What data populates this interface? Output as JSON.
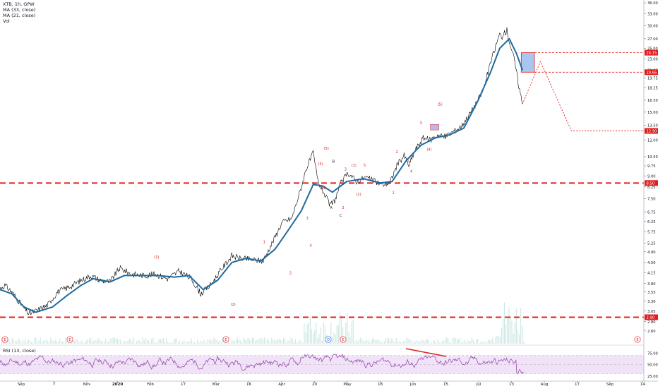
{
  "header": {
    "symbol_line": "XTB, 1h, GPW",
    "ma_short": "MA (33, close)",
    "ma_long": "MA (21, close)",
    "volume": "Vol"
  },
  "rsi_header": "RSI (13, close)",
  "colors": {
    "price_up": "#26a69a",
    "price_down": "#000000",
    "ma_line": "#1e6b9f",
    "level_line": "#e31d1d",
    "wave_label": "#d11a1a",
    "rsi_line": "#8e3ea8",
    "rsi_band": "#f1e3f7",
    "target_box": "#a9c6f1",
    "volume": "#cfe8e4"
  },
  "chart_data": [
    {
      "type": "line",
      "name_note": "Price chart with wave annotations",
      "x_tick_labels": [
        "Sep",
        "7",
        "Nov",
        "2020",
        "Feb",
        "17",
        "Mar",
        "16",
        "Apr",
        "20",
        "May",
        "18",
        "Jun",
        "15",
        "Jul",
        "13",
        "Aug",
        "17",
        "Sep",
        "14"
      ],
      "y_axis": {
        "scale": "log",
        "ylim": [
          2.4,
          36.0
        ],
        "tick_labels": [
          "36.00",
          "33.00",
          "30.00",
          "27.00",
          "25.00",
          "23.00",
          "21.00",
          "19.75",
          "18.25",
          "16.50",
          "15.00",
          "13.50",
          "12.00",
          "10.50",
          "9.75",
          "9.00",
          "8.25",
          "7.50",
          "6.75",
          "6.25",
          "5.75",
          "5.25",
          "4.90",
          "4.50",
          "4.15",
          "3.80",
          "3.55",
          "3.30",
          "3.05",
          "2.80",
          "2.60"
        ]
      },
      "price_labels": [
        "24.15",
        "20.65",
        "12.90",
        "8.50",
        "2.90"
      ],
      "price_levels": [
        24.15,
        20.65,
        12.9,
        8.5,
        2.9
      ],
      "horizontal_levels": [
        8.5,
        2.9
      ],
      "price_series": [
        {
          "x": 0,
          "y": 3.65
        },
        {
          "x": 4,
          "y": 3.75
        },
        {
          "x": 10,
          "y": 3.55
        },
        {
          "x": 18,
          "y": 3.2
        },
        {
          "x": 24,
          "y": 2.98
        },
        {
          "x": 30,
          "y": 3.05
        },
        {
          "x": 40,
          "y": 3.2
        },
        {
          "x": 48,
          "y": 3.55
        },
        {
          "x": 58,
          "y": 3.7
        },
        {
          "x": 68,
          "y": 3.9
        },
        {
          "x": 76,
          "y": 4.05
        },
        {
          "x": 84,
          "y": 3.9
        },
        {
          "x": 92,
          "y": 3.85
        },
        {
          "x": 100,
          "y": 4.3
        },
        {
          "x": 110,
          "y": 4.1
        },
        {
          "x": 120,
          "y": 4.05
        },
        {
          "x": 130,
          "y": 4.1
        },
        {
          "x": 140,
          "y": 3.95
        },
        {
          "x": 150,
          "y": 4.2
        },
        {
          "x": 160,
          "y": 3.95
        },
        {
          "x": 168,
          "y": 3.5
        },
        {
          "x": 176,
          "y": 3.75
        },
        {
          "x": 186,
          "y": 4.3
        },
        {
          "x": 194,
          "y": 4.75
        },
        {
          "x": 200,
          "y": 4.65
        },
        {
          "x": 212,
          "y": 4.6
        },
        {
          "x": 220,
          "y": 4.55
        },
        {
          "x": 228,
          "y": 5.3
        },
        {
          "x": 236,
          "y": 6.2
        },
        {
          "x": 244,
          "y": 6.4
        },
        {
          "x": 252,
          "y": 8.2
        },
        {
          "x": 256,
          "y": 9.5
        },
        {
          "x": 262,
          "y": 10.8
        },
        {
          "x": 266,
          "y": 8.6
        },
        {
          "x": 270,
          "y": 8.0
        },
        {
          "x": 276,
          "y": 7.1
        },
        {
          "x": 280,
          "y": 7.4
        },
        {
          "x": 286,
          "y": 8.7
        },
        {
          "x": 292,
          "y": 9.2
        },
        {
          "x": 298,
          "y": 8.6
        },
        {
          "x": 306,
          "y": 8.9
        },
        {
          "x": 314,
          "y": 8.6
        },
        {
          "x": 320,
          "y": 8.4
        },
        {
          "x": 326,
          "y": 8.5
        },
        {
          "x": 332,
          "y": 9.8
        },
        {
          "x": 338,
          "y": 10.6
        },
        {
          "x": 342,
          "y": 9.8
        },
        {
          "x": 348,
          "y": 11.2
        },
        {
          "x": 354,
          "y": 12.2
        },
        {
          "x": 360,
          "y": 12.0
        },
        {
          "x": 366,
          "y": 12.5
        },
        {
          "x": 372,
          "y": 12.3
        },
        {
          "x": 380,
          "y": 12.9
        },
        {
          "x": 386,
          "y": 13.4
        },
        {
          "x": 392,
          "y": 14.6
        },
        {
          "x": 398,
          "y": 16.0
        },
        {
          "x": 404,
          "y": 17.8
        },
        {
          "x": 410,
          "y": 22.0
        },
        {
          "x": 414,
          "y": 25.0
        },
        {
          "x": 418,
          "y": 28.0
        },
        {
          "x": 420,
          "y": 27.5
        },
        {
          "x": 424,
          "y": 29.0
        },
        {
          "x": 426,
          "y": 26.5
        },
        {
          "x": 430,
          "y": 23.0
        },
        {
          "x": 434,
          "y": 18.5
        },
        {
          "x": 437,
          "y": 16.0
        }
      ],
      "ma_series": [
        {
          "x": 0,
          "y": 3.62
        },
        {
          "x": 10,
          "y": 3.5
        },
        {
          "x": 20,
          "y": 3.15
        },
        {
          "x": 30,
          "y": 3.02
        },
        {
          "x": 44,
          "y": 3.15
        },
        {
          "x": 56,
          "y": 3.45
        },
        {
          "x": 68,
          "y": 3.75
        },
        {
          "x": 78,
          "y": 3.95
        },
        {
          "x": 92,
          "y": 3.85
        },
        {
          "x": 104,
          "y": 4.05
        },
        {
          "x": 118,
          "y": 4.05
        },
        {
          "x": 132,
          "y": 4.05
        },
        {
          "x": 146,
          "y": 4.0
        },
        {
          "x": 158,
          "y": 4.05
        },
        {
          "x": 170,
          "y": 3.62
        },
        {
          "x": 182,
          "y": 3.9
        },
        {
          "x": 194,
          "y": 4.5
        },
        {
          "x": 206,
          "y": 4.65
        },
        {
          "x": 218,
          "y": 4.55
        },
        {
          "x": 230,
          "y": 5.0
        },
        {
          "x": 242,
          "y": 5.9
        },
        {
          "x": 252,
          "y": 6.8
        },
        {
          "x": 262,
          "y": 8.4
        },
        {
          "x": 270,
          "y": 8.3
        },
        {
          "x": 278,
          "y": 7.9
        },
        {
          "x": 290,
          "y": 8.6
        },
        {
          "x": 304,
          "y": 8.8
        },
        {
          "x": 318,
          "y": 8.5
        },
        {
          "x": 328,
          "y": 8.6
        },
        {
          "x": 340,
          "y": 10.2
        },
        {
          "x": 352,
          "y": 11.5
        },
        {
          "x": 364,
          "y": 12.2
        },
        {
          "x": 376,
          "y": 12.5
        },
        {
          "x": 388,
          "y": 13.2
        },
        {
          "x": 400,
          "y": 16.5
        },
        {
          "x": 410,
          "y": 20.5
        },
        {
          "x": 418,
          "y": 25.0
        },
        {
          "x": 426,
          "y": 27.0
        },
        {
          "x": 432,
          "y": 24.0
        },
        {
          "x": 437,
          "y": 21.0
        }
      ],
      "projection_path": [
        {
          "x": 437,
          "y": 16.0
        },
        {
          "x": 452,
          "y": 22.5
        },
        {
          "x": 478,
          "y": 12.9
        },
        {
          "x": 540,
          "y": 12.9
        }
      ],
      "target_zone": {
        "x_start": 436,
        "x_end": 447,
        "y_low": 20.65,
        "y_high": 24.15
      },
      "small_box": {
        "x_start": 360,
        "x_end": 367,
        "y_low": 13.0,
        "y_high": 13.6
      },
      "wave_labels": [
        {
          "text": "(1)",
          "x": 131,
          "y": 4.65
        },
        {
          "text": "(2)",
          "x": 195,
          "y": 3.18
        },
        {
          "text": "1",
          "x": 221,
          "y": 5.25
        },
        {
          "text": "2",
          "x": 243,
          "y": 4.1
        },
        {
          "text": "3",
          "x": 257,
          "y": 6.35
        },
        {
          "text": "4",
          "x": 260,
          "y": 5.1
        },
        {
          "text": "(3)",
          "x": 268,
          "y": 9.8
        },
        {
          "text": "(5)",
          "x": 273,
          "y": 11.1
        },
        {
          "text": "B",
          "x": 279,
          "y": 10.0
        },
        {
          "text": "(4)",
          "x": 271,
          "y": 8.1
        },
        {
          "text": "A",
          "x": 277,
          "y": 6.9
        },
        {
          "text": "2",
          "x": 287,
          "y": 6.9
        },
        {
          "text": "C",
          "x": 285,
          "y": 6.5
        },
        {
          "text": "3",
          "x": 289,
          "y": 9.4
        },
        {
          "text": "(1)",
          "x": 296,
          "y": 9.7
        },
        {
          "text": "(2)",
          "x": 300,
          "y": 7.7
        },
        {
          "text": "5",
          "x": 305,
          "y": 9.7
        },
        {
          "text": "1",
          "x": 329,
          "y": 7.8
        },
        {
          "text": "2",
          "x": 332,
          "y": 10.8
        },
        {
          "text": "3",
          "x": 341,
          "y": 10.1
        },
        {
          "text": "4",
          "x": 344,
          "y": 9.25
        },
        {
          "text": "3",
          "x": 352,
          "y": 13.6
        },
        {
          "text": "(4)",
          "x": 359,
          "y": 11.0
        },
        {
          "text": "(5)",
          "x": 368,
          "y": 15.8
        }
      ],
      "event_markers": [
        "E",
        "E",
        "E",
        "D",
        "E",
        "E"
      ]
    },
    {
      "type": "line",
      "title": "RSI (13, close)",
      "ylim": [
        20,
        85
      ],
      "tick_labels": [
        "75.00",
        "50.00",
        "25.00"
      ],
      "band": [
        30,
        70
      ]
    }
  ]
}
